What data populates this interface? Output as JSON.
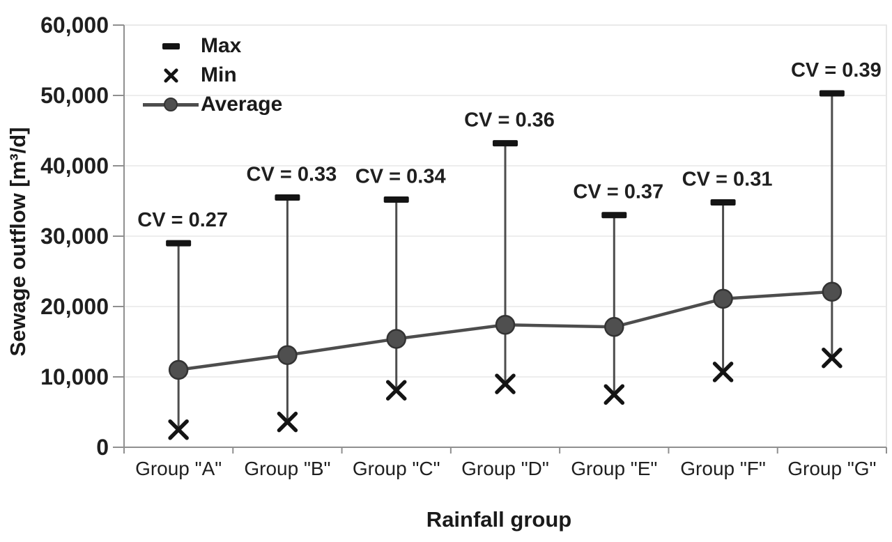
{
  "figure": {
    "background": "#ffffff"
  },
  "chart_data": {
    "type": "line",
    "title": "",
    "xlabel": "Rainfall group",
    "ylabel": "Sewage outflow [m³/d]",
    "categories": [
      "Group \"A\"",
      "Group \"B\"",
      "Group \"C\"",
      "Group \"D\"",
      "Group \"E\"",
      "Group \"F\"",
      "Group \"G\""
    ],
    "series": [
      {
        "name": "Max",
        "marker": "dash",
        "values": [
          29000,
          35500,
          35200,
          43200,
          33000,
          34800,
          50300
        ]
      },
      {
        "name": "Min",
        "marker": "x",
        "values": [
          2500,
          3600,
          8100,
          9000,
          7500,
          10700,
          12700
        ]
      },
      {
        "name": "Average",
        "marker": "circle",
        "line": true,
        "values": [
          11000,
          13100,
          15400,
          17400,
          17100,
          21100,
          22100
        ]
      }
    ],
    "annotations": [
      "CV = 0.27",
      "CV = 0.33",
      "CV = 0.34",
      "CV = 0.36",
      "CV = 0.37",
      "CV = 0.31",
      "CV = 0.39"
    ],
    "cv_values": [
      0.27,
      0.33,
      0.34,
      0.36,
      0.37,
      0.31,
      0.39
    ],
    "ylim": [
      0,
      60000
    ],
    "yticks": [
      0,
      10000,
      20000,
      30000,
      40000,
      50000,
      60000
    ],
    "ytick_labels": [
      "0",
      "10,000",
      "20,000",
      "30,000",
      "40,000",
      "50,000",
      "60,000"
    ],
    "grid": "horizontal",
    "legend_position": "top-left-inside",
    "colors": {
      "marker_black": "#141414",
      "line_gray": "#4d4d4d",
      "circle_fill": "#4f4f4f",
      "circle_stroke": "#333333",
      "grid": "#e7e7e7",
      "axis": "#8f8f8f",
      "plot_border": "#dedede",
      "text": "#1f1f1f"
    }
  }
}
